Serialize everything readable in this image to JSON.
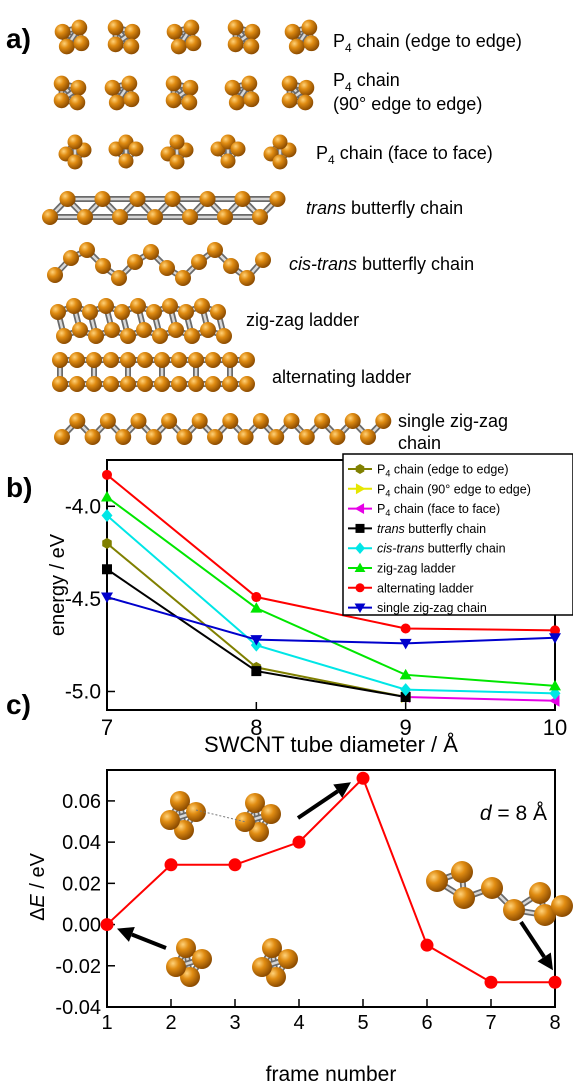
{
  "panel_labels": {
    "a": "a)",
    "b": "b)",
    "c": "c)"
  },
  "panel_a": {
    "rows": [
      {
        "label_main": "P",
        "label_sub": "4",
        "label_rest": " chain (edge to edge)"
      },
      {
        "label_main": "P",
        "label_sub": "4",
        "label_rest": " chain",
        "label_line2": "(90° edge to edge)"
      },
      {
        "label_main": "P",
        "label_sub": "4",
        "label_rest": " chain (face to face)"
      },
      {
        "label_italic": "trans",
        "label_rest": " butterfly chain"
      },
      {
        "label_italic": "cis-trans",
        "label_rest": " butterfly chain"
      },
      {
        "label_rest": "zig-zag ladder"
      },
      {
        "label_rest": "alternating ladder"
      },
      {
        "label_rest": "single zig-zag",
        "label_line2": "chain"
      }
    ]
  },
  "chart_data": [
    {
      "type": "line",
      "panel": "b",
      "xlabel": "SWCNT tube diameter / Å",
      "ylabel": "energy / eV",
      "xlim": [
        7,
        10
      ],
      "ylim": [
        -5.1,
        -3.75
      ],
      "xticks": [
        7,
        8,
        9,
        10
      ],
      "xtick_labels": [
        "7",
        "8",
        "9",
        "10"
      ],
      "yticks": [
        -5.0,
        -4.5,
        -4.0
      ],
      "ytick_labels": [
        "-5.0",
        "-4.5",
        "-4.0"
      ],
      "legend_position": "top-right",
      "series": [
        {
          "name_main": "P",
          "name_sub": "4",
          "name_rest": " chain (edge to edge)",
          "color": "#808000",
          "marker": "hexagon",
          "x": [
            7,
            8,
            9
          ],
          "y": [
            -4.2,
            -4.87,
            -5.03
          ]
        },
        {
          "name_main": "P",
          "name_sub": "4",
          "name_rest": " chain (90° edge to edge)",
          "color": "#e6e600",
          "marker": "triangle-right",
          "x": [
            9
          ],
          "y": [
            -5.03
          ]
        },
        {
          "name_main": "P",
          "name_sub": "4",
          "name_rest": " chain (face to face)",
          "color": "#e600e6",
          "marker": "triangle-left",
          "x": [
            9,
            10
          ],
          "y": [
            -5.03,
            -5.05
          ]
        },
        {
          "name_italic": "trans",
          "name_rest": " butterfly chain",
          "color": "#000000",
          "marker": "square",
          "x": [
            7,
            8,
            9
          ],
          "y": [
            -4.34,
            -4.89,
            -5.03
          ]
        },
        {
          "name_italic": "cis-trans",
          "name_rest": " butterfly chain",
          "color": "#00e6e6",
          "marker": "diamond",
          "x": [
            7,
            8,
            9,
            10
          ],
          "y": [
            -4.05,
            -4.75,
            -4.99,
            -5.01
          ]
        },
        {
          "name_rest": "zig-zag ladder",
          "color": "#00e600",
          "marker": "triangle-up",
          "x": [
            7,
            8,
            9,
            10
          ],
          "y": [
            -3.95,
            -4.55,
            -4.91,
            -4.97
          ]
        },
        {
          "name_rest": "alternating ladder",
          "color": "#ff0000",
          "marker": "circle",
          "x": [
            7,
            8,
            9,
            10
          ],
          "y": [
            -3.83,
            -4.49,
            -4.66,
            -4.67
          ]
        },
        {
          "name_rest": "single zig-zag chain",
          "color": "#0000cc",
          "marker": "triangle-down",
          "x": [
            7,
            8,
            9,
            10
          ],
          "y": [
            -4.49,
            -4.72,
            -4.74,
            -4.71
          ]
        }
      ]
    },
    {
      "type": "line",
      "panel": "c",
      "xlabel": "frame number",
      "ylabel_greek": "Δ",
      "ylabel_italic": "E",
      "ylabel_rest": " / eV",
      "annotation_italic": "d",
      "annotation_rest": " = 8 Å",
      "xlim": [
        1,
        8
      ],
      "ylim": [
        -0.04,
        0.075
      ],
      "xticks": [
        1,
        2,
        3,
        4,
        5,
        6,
        7,
        8
      ],
      "xtick_labels": [
        "1",
        "2",
        "3",
        "4",
        "5",
        "6",
        "7",
        "8"
      ],
      "yticks": [
        -0.04,
        -0.02,
        0.0,
        0.02,
        0.04,
        0.06
      ],
      "ytick_labels": [
        "-0.04",
        "-0.02",
        "0.00",
        "0.02",
        "0.04",
        "0.06"
      ],
      "series": [
        {
          "color": "#ff0000",
          "marker": "circle",
          "x": [
            1,
            2,
            3,
            4,
            5,
            6,
            7,
            8
          ],
          "y": [
            0.0,
            0.029,
            0.029,
            0.04,
            0.071,
            -0.01,
            -0.028,
            -0.028
          ]
        }
      ]
    }
  ]
}
